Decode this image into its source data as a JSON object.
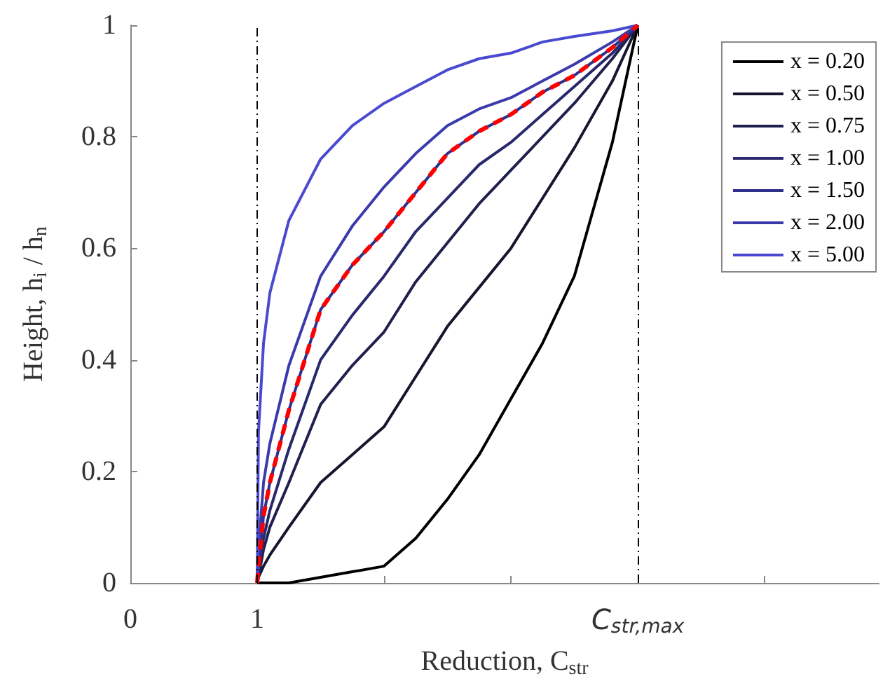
{
  "chart_data": {
    "type": "line",
    "xlabel": "Reduction, C$_{str}$",
    "ylabel": "Height, h$_{i}$ / h$_{n}$",
    "x": [
      1,
      1.01,
      1.05,
      1.1,
      1.25,
      1.5,
      1.75,
      2,
      2.25,
      2.5,
      2.75,
      3,
      3.25,
      3.5,
      3.8,
      4
    ],
    "series": [
      {
        "name": "x = 0.20",
        "color": "#000000",
        "values": [
          0,
          0,
          0,
          0,
          0,
          0.01,
          0.02,
          0.03,
          0.08,
          0.15,
          0.23,
          0.33,
          0.43,
          0.55,
          0.79,
          1
        ]
      },
      {
        "name": "x = 0.50",
        "color": "#16162e",
        "values": [
          0,
          0.01,
          0.03,
          0.05,
          0.1,
          0.18,
          0.23,
          0.28,
          0.37,
          0.46,
          0.53,
          0.6,
          0.69,
          0.78,
          0.9,
          1
        ]
      },
      {
        "name": "x = 0.75",
        "color": "#20204f",
        "values": [
          0,
          0.01,
          0.06,
          0.1,
          0.18,
          0.32,
          0.39,
          0.45,
          0.54,
          0.61,
          0.68,
          0.74,
          0.8,
          0.86,
          0.94,
          1
        ]
      },
      {
        "name": "x = 1.00",
        "color": "#28286c",
        "values": [
          0,
          0.02,
          0.08,
          0.13,
          0.24,
          0.4,
          0.48,
          0.55,
          0.63,
          0.69,
          0.75,
          0.79,
          0.84,
          0.89,
          0.95,
          1
        ]
      },
      {
        "name": "x = 1.50",
        "color": "#30308c",
        "values": [
          0,
          0.03,
          0.12,
          0.18,
          0.31,
          0.49,
          0.57,
          0.63,
          0.7,
          0.77,
          0.81,
          0.84,
          0.88,
          0.91,
          0.96,
          1
        ]
      },
      {
        "name": "x = 2.00",
        "color": "#3a3aad",
        "values": [
          0,
          0.06,
          0.18,
          0.25,
          0.39,
          0.55,
          0.64,
          0.71,
          0.77,
          0.82,
          0.85,
          0.87,
          0.9,
          0.93,
          0.97,
          1
        ]
      },
      {
        "name": "x = 5.00",
        "color": "#4a4ad0",
        "values": [
          0,
          0.27,
          0.43,
          0.52,
          0.65,
          0.76,
          0.82,
          0.86,
          0.89,
          0.92,
          0.94,
          0.95,
          0.97,
          0.98,
          0.99,
          1
        ]
      },
      {
        "color": "#ff0000",
        "line_style": "dashed",
        "values": [
          0,
          0.03,
          0.12,
          0.18,
          0.31,
          0.49,
          0.57,
          0.63,
          0.7,
          0.77,
          0.81,
          0.84,
          0.88,
          0.91,
          0.96,
          1
        ]
      }
    ],
    "xlim": [
      0,
      5.9
    ],
    "xticks": [
      0,
      1,
      {
        "value": 2,
        "label": null
      },
      {
        "value": 3,
        "label": null
      },
      {
        "value": 4,
        "label": "C$_{str,max}$"
      },
      {
        "value": 5,
        "label": null
      }
    ],
    "ylim": [
      0,
      1
    ],
    "yticks": [
      0,
      0.2,
      0.4,
      0.6,
      0.8,
      1
    ],
    "ref_lines": [
      {
        "axis": "x",
        "value": 1,
        "color": "#000000",
        "line_style": "dashdot"
      },
      {
        "axis": "x",
        "value": 4,
        "color": "#000000",
        "line_style": "dashdot"
      }
    ],
    "grid": false,
    "legend": "top right",
    "marker": "none",
    "line_style": "solid"
  }
}
